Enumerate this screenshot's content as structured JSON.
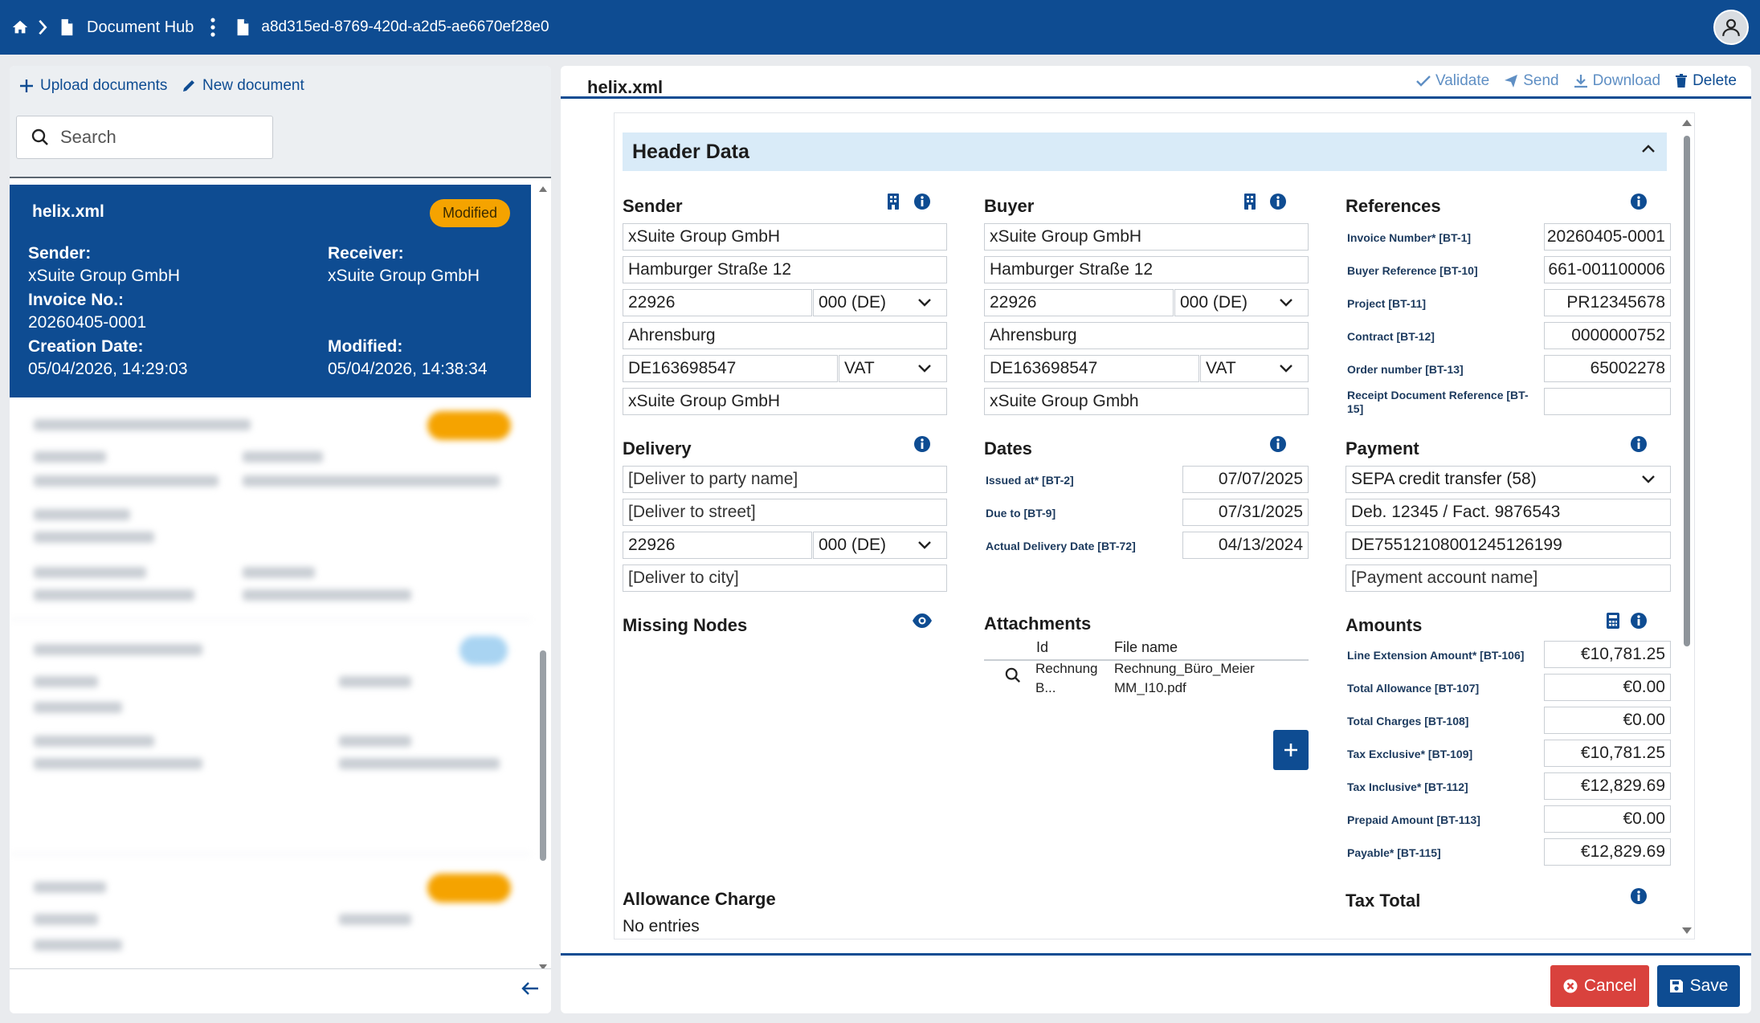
{
  "topbar": {
    "title": "Document Hub",
    "document_id": "a8d315ed-8769-420d-a2d5-ae6670ef28e0"
  },
  "left": {
    "upload_label": "Upload documents",
    "new_label": "New document",
    "search_placeholder": "Search",
    "selected": {
      "name": "helix.xml",
      "badge": "Modified",
      "sender_label": "Sender:",
      "sender": "xSuite Group GmbH",
      "receiver_label": "Receiver:",
      "receiver": "xSuite Group GmbH",
      "invoice_label": "Invoice No.:",
      "invoice": "20260405-0001",
      "created_label": "Creation Date:",
      "created": "05/04/2026, 14:29:03",
      "modified_label": "Modified:",
      "modified": "05/04/2026, 14:38:34"
    }
  },
  "right": {
    "title": "helix.xml",
    "actions": {
      "validate": "Validate",
      "send": "Send",
      "download": "Download",
      "delete": "Delete"
    },
    "header_section": "Header Data",
    "sender": {
      "title": "Sender",
      "name": "xSuite Group GmbH",
      "street": "Hamburger Straße 12",
      "zip": "22926",
      "country": "000 (DE)",
      "city": "Ahrensburg",
      "tax_id": "DE163698547",
      "tax_type": "VAT",
      "company": "xSuite Group GmbH"
    },
    "buyer": {
      "title": "Buyer",
      "name": "xSuite Group GmbH",
      "street": "Hamburger Straße 12",
      "zip": "22926",
      "country": "000 (DE)",
      "city": "Ahrensburg",
      "tax_id": "DE163698547",
      "tax_type": "VAT",
      "company": "xSuite Group Gmbh"
    },
    "references": {
      "title": "References",
      "rows": [
        {
          "label": "Invoice Number* [BT-1]",
          "value": "20260405-0001"
        },
        {
          "label": "Buyer Reference [BT-10]",
          "value": "661-001100006"
        },
        {
          "label": "Project [BT-11]",
          "value": "PR12345678"
        },
        {
          "label": "Contract [BT-12]",
          "value": "0000000752"
        },
        {
          "label": "Order number [BT-13]",
          "value": "65002278"
        },
        {
          "label": "Receipt Document Reference [BT-15]",
          "value": ""
        }
      ]
    },
    "delivery": {
      "title": "Delivery",
      "name_placeholder": "[Deliver to party name]",
      "street_placeholder": "[Deliver to street]",
      "zip": "22926",
      "country": "000 (DE)",
      "city_placeholder": "[Deliver to city]"
    },
    "dates": {
      "title": "Dates",
      "rows": [
        {
          "label": "Issued at* [BT-2]",
          "value": "07/07/2025"
        },
        {
          "label": "Due to [BT-9]",
          "value": "07/31/2025"
        },
        {
          "label": "Actual Delivery Date [BT-72]",
          "value": "04/13/2024"
        }
      ]
    },
    "payment": {
      "title": "Payment",
      "means": "SEPA credit transfer (58)",
      "remittance": "Deb. 12345 / Fact. 9876543",
      "iban": "DE75512108001245126199",
      "account_placeholder": "[Payment account name]"
    },
    "missing_nodes": {
      "title": "Missing Nodes"
    },
    "attachments": {
      "title": "Attachments",
      "col_id": "Id",
      "col_file": "File name",
      "row_id_1": "Rechnung",
      "row_id_2": "B...",
      "row_file_1": "Rechnung_Büro_Meier",
      "row_file_2": "MM_I10.pdf"
    },
    "amounts": {
      "title": "Amounts",
      "rows": [
        {
          "label": "Line Extension Amount* [BT-106]",
          "value": "€10,781.25"
        },
        {
          "label": "Total Allowance [BT-107]",
          "value": "€0.00"
        },
        {
          "label": "Total Charges [BT-108]",
          "value": "€0.00"
        },
        {
          "label": "Tax Exclusive* [BT-109]",
          "value": "€10,781.25"
        },
        {
          "label": "Tax Inclusive* [BT-112]",
          "value": "€12,829.69"
        },
        {
          "label": "Prepaid Amount [BT-113]",
          "value": "€0.00"
        },
        {
          "label": "Payable* [BT-115]",
          "value": "€12,829.69"
        }
      ]
    },
    "allowance": {
      "title": "Allowance Charge",
      "empty": "No entries"
    },
    "tax_total": {
      "title": "Tax Total"
    },
    "cancel": "Cancel",
    "save": "Save"
  },
  "colors": {
    "primary": "#0e4c92",
    "badge": "#f5a300",
    "cancel": "#d9423d",
    "header_bg": "#d9ebf8"
  }
}
